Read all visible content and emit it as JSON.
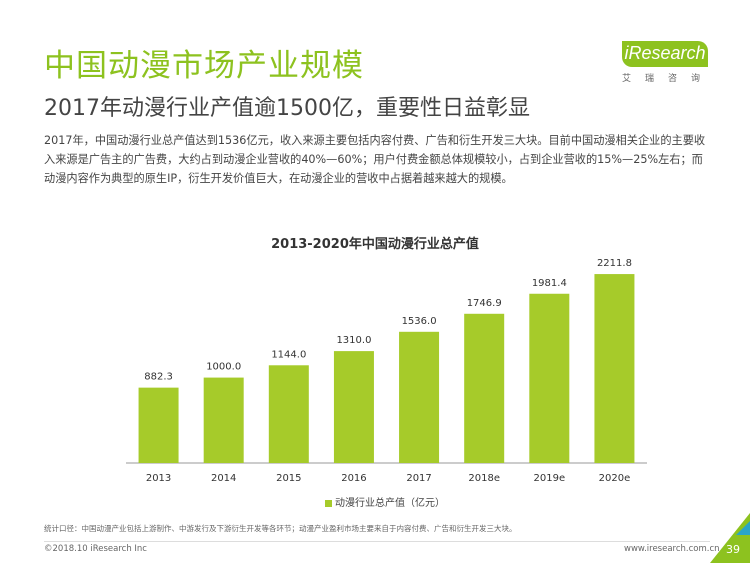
{
  "header": {
    "title": "中国动漫市场产业规模",
    "subtitle": "2017年动漫行业产值逾1500亿，重要性日益彰显",
    "paragraph": "2017年，中国动漫行业总产值达到1536亿元，收入来源主要包括内容付费、广告和衍生开发三大块。目前中国动漫相关企业的主要收入来源是广告主的广告费，大约占到动漫企业营收的40%—60%；用户付费金额总体规模较小，占到企业营收的15%—25%左右；而动漫内容作为典型的原生IP，衍生开发价值巨大，在动漫企业的营收中占据着越来越大的规模。"
  },
  "logo": {
    "word": "iResearch",
    "sub": "艾瑞咨询"
  },
  "colors": {
    "accent": "#8dc21f",
    "bar": "#a6cb2a"
  },
  "chart_data": {
    "type": "bar",
    "title": "2013-2020年中国动漫行业总产值",
    "categories": [
      "2013",
      "2014",
      "2015",
      "2016",
      "2017",
      "2018e",
      "2019e",
      "2020e"
    ],
    "series": [
      {
        "name": "动漫行业总产值（亿元）",
        "values": [
          882.3,
          1000.0,
          1144.0,
          1310.0,
          1536.0,
          1746.9,
          1981.4,
          2211.8
        ]
      }
    ],
    "value_labels": [
      "882.3",
      "1000.0",
      "1144.0",
      "1310.0",
      "1536.0",
      "1746.9",
      "1981.4",
      "2211.8"
    ],
    "ylim": [
      0,
      2400
    ],
    "grid": false,
    "legend_position": "bottom"
  },
  "footer": {
    "footnote": "统计口径：中国动漫产业包括上游制作、中游发行及下游衍生开发等各环节；动漫产业盈利市场主要来自于内容付费、广告和衍生开发三大块。",
    "copyright": "©2018.10 iResearch Inc",
    "website": "www.iresearch.com.cn",
    "page": "39"
  }
}
